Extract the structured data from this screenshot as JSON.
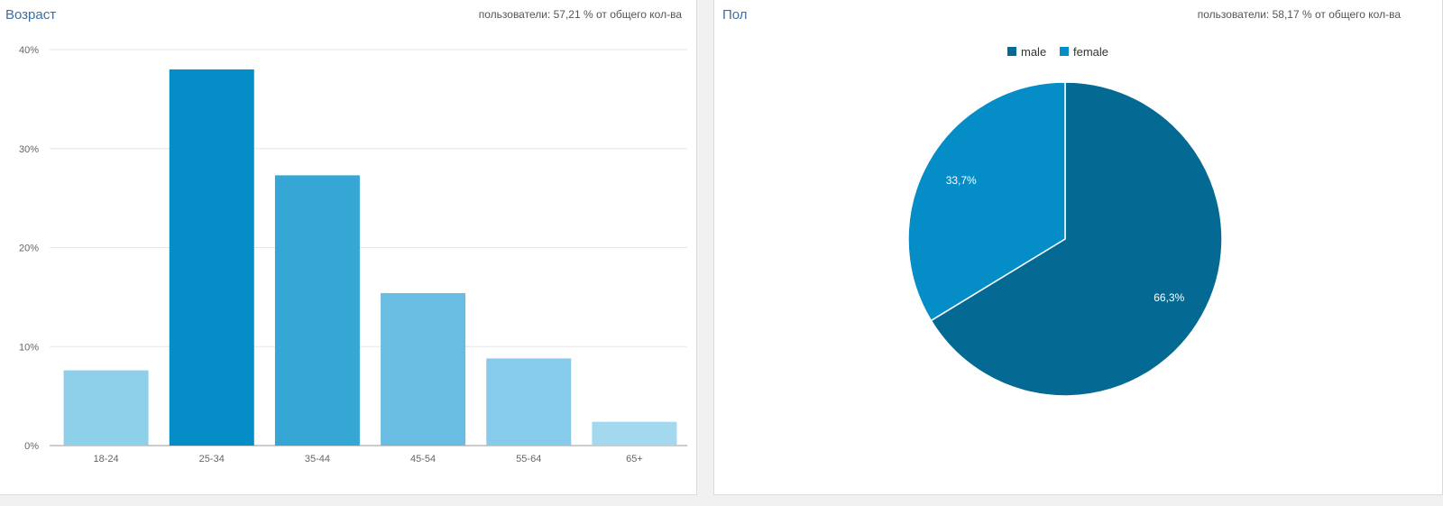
{
  "age_panel": {
    "title": "Возраст",
    "subtitle": "пользователи: 57,21 % от общего кол-ва"
  },
  "gender_panel": {
    "title": "Пол",
    "subtitle": "пользователи: 58,17 % от общего кол-ва"
  },
  "chart_data": [
    {
      "type": "bar",
      "title": "Возраст",
      "categories": [
        "18-24",
        "25-34",
        "35-44",
        "45-54",
        "55-64",
        "65+"
      ],
      "values": [
        7.6,
        38.0,
        27.3,
        15.4,
        8.8,
        2.4
      ],
      "colors": [
        "#8ecfea",
        "#058dc7",
        "#36a6d4",
        "#6abde2",
        "#86cbea",
        "#a4d8ef"
      ],
      "ylim": [
        0,
        40
      ],
      "yticks": [
        0,
        10,
        20,
        30,
        40
      ],
      "ytick_labels": [
        "0%",
        "10%",
        "20%",
        "30%",
        "40%"
      ],
      "grid": true,
      "xlabel": "",
      "ylabel": ""
    },
    {
      "type": "pie",
      "title": "Пол",
      "slices": [
        {
          "name": "male",
          "value": 66.3,
          "label": "66,3%",
          "color": "#056a93"
        },
        {
          "name": "female",
          "value": 33.7,
          "label": "33,7%",
          "color": "#058dc7"
        }
      ],
      "legend": "top"
    }
  ]
}
